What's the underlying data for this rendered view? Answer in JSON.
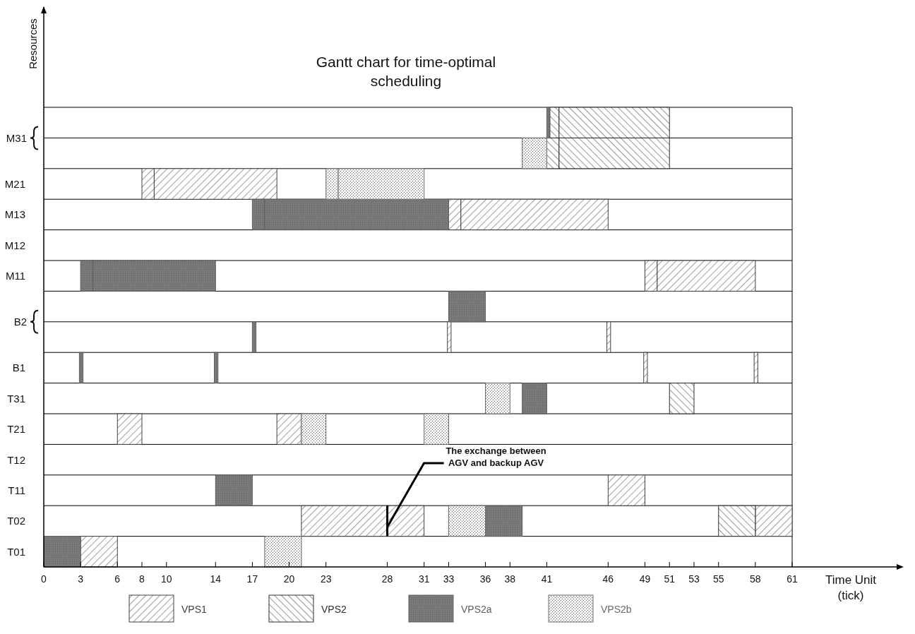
{
  "chart_data": {
    "type": "bar",
    "orientation": "horizontal",
    "title": "Gantt chart for time-optimal scheduling",
    "xlabel": "Time Unit (tick)",
    "ylabel": "Resources",
    "categories": [
      "M31",
      null,
      "M21",
      "M13",
      "M12",
      "M11",
      "B2",
      null,
      "B1",
      "T31",
      "T21",
      "T12",
      "T11",
      "T02",
      "T01"
    ],
    "xlim": [
      0,
      61
    ],
    "xticks": [
      0,
      3,
      6,
      8,
      10,
      14,
      17,
      20,
      23,
      28,
      31,
      33,
      36,
      38,
      41,
      46,
      49,
      51,
      53,
      55,
      58,
      61
    ],
    "legend": "bottom",
    "annotations": [
      {
        "text": "The exchange between AGV and backup AGV",
        "x": 28,
        "y": "T02"
      }
    ],
    "series": [
      {
        "name": "VPS1",
        "color": "#404040",
        "base": [
          null,
          null,
          8,
          33,
          null,
          49,
          null,
          32.9,
          48.9,
          null,
          6,
          null,
          46,
          21,
          3
        ],
        "values": [
          null,
          null,
          1,
          1,
          null,
          1,
          null,
          0.3,
          0.3,
          null,
          2,
          null,
          3,
          7,
          3
        ]
      },
      {
        "color": "#404040",
        "base": [
          null,
          null,
          9,
          34,
          null,
          50,
          null,
          45.9,
          57.9,
          null,
          19,
          null,
          null,
          28,
          null
        ],
        "values": [
          null,
          null,
          10,
          12,
          null,
          8,
          null,
          0.3,
          0.3,
          null,
          2,
          null,
          null,
          3,
          null
        ]
      },
      {
        "color": "#404040",
        "base": [
          null,
          null,
          null,
          null,
          null,
          null,
          null,
          null,
          null,
          null,
          null,
          null,
          null,
          58,
          null
        ],
        "values": [
          null,
          null,
          null,
          null,
          null,
          null,
          null,
          null,
          null,
          null,
          null,
          null,
          null,
          3,
          null
        ]
      },
      {
        "name": "VPS2",
        "color": "#2e2e2e",
        "base": [
          41.25,
          41,
          null,
          null,
          null,
          null,
          null,
          null,
          null,
          51,
          null,
          null,
          null,
          55,
          null
        ],
        "values": [
          0.75,
          1,
          null,
          null,
          null,
          null,
          null,
          null,
          null,
          2,
          null,
          null,
          null,
          3,
          null
        ]
      },
      {
        "color": "#2e2e2e",
        "base": [
          42,
          42,
          null,
          null,
          null,
          null,
          null,
          null,
          null,
          null,
          null,
          null,
          null,
          null,
          null
        ],
        "values": [
          9,
          9,
          null,
          null,
          null,
          null,
          null,
          null,
          null,
          null,
          null,
          null,
          null,
          null,
          null
        ]
      },
      {
        "name": "VPS2a",
        "color": "#5e5e5e",
        "base": [
          41,
          null,
          null,
          17,
          null,
          3,
          33,
          17,
          2.9,
          39,
          null,
          null,
          14,
          36,
          0
        ],
        "values": [
          0.25,
          null,
          null,
          1,
          null,
          1,
          3,
          0.3,
          0.3,
          2,
          null,
          null,
          3,
          3,
          3
        ]
      },
      {
        "color": "#5e5e5e",
        "base": [
          null,
          null,
          null,
          18,
          null,
          4,
          null,
          null,
          13.9,
          null,
          null,
          null,
          null,
          null,
          null
        ],
        "values": [
          null,
          null,
          null,
          15,
          null,
          10,
          null,
          null,
          0.3,
          null,
          null,
          null,
          null,
          null,
          null
        ]
      },
      {
        "name": "VPS2b",
        "color": "#6a6a6a",
        "base": [
          null,
          39,
          23,
          null,
          null,
          null,
          null,
          null,
          null,
          36,
          21,
          null,
          null,
          33,
          18
        ],
        "values": [
          null,
          2,
          1,
          null,
          null,
          null,
          null,
          null,
          null,
          2,
          2,
          null,
          null,
          3,
          3
        ]
      },
      {
        "color": "#6a6a6a",
        "base": [
          null,
          null,
          24,
          null,
          null,
          null,
          null,
          null,
          null,
          null,
          31,
          null,
          null,
          null,
          null
        ],
        "values": [
          null,
          null,
          7,
          null,
          null,
          null,
          null,
          null,
          null,
          null,
          2,
          null,
          null,
          null,
          null
        ]
      }
    ]
  }
}
